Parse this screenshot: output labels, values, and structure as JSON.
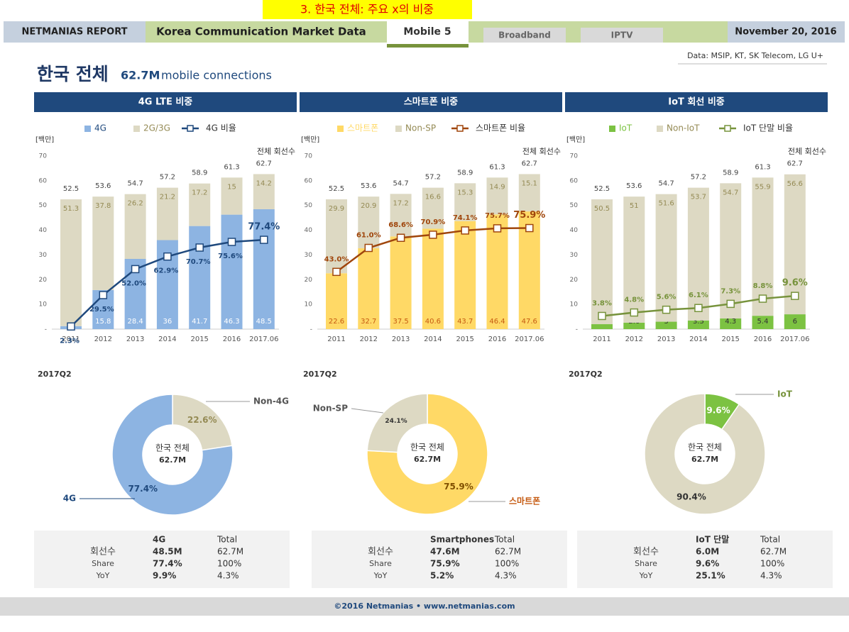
{
  "header": {
    "section": "3. 한국 전체: 주요 x의 비중",
    "brand": "NETMANIAS REPORT",
    "report": "Korea Communication Market Data",
    "tabs": [
      "Mobile 5",
      "Broadband",
      "IPTV"
    ],
    "date": "November 20, 2016",
    "source": "Data: MSIP, KT, SK Telecom, LG U+"
  },
  "page_title": {
    "title": "한국 전체",
    "highlight": "62.7M",
    "subtitle": "mobile connections"
  },
  "chart_data": [
    {
      "type": "bar",
      "title": "4G LTE 비중",
      "y_label": "[백만]",
      "totals_label": "전체 회선수",
      "stacked": true,
      "categories": [
        "2011",
        "2012",
        "2013",
        "2014",
        "2015",
        "2016",
        "2017.06"
      ],
      "series": [
        {
          "name": "4G",
          "color": "#8db4e2",
          "values": [
            1.2,
            15.8,
            28.4,
            36.0,
            41.7,
            46.3,
            48.5
          ]
        },
        {
          "name": "2G/3G",
          "color": "#ddd9c3",
          "values": [
            51.3,
            37.8,
            26.2,
            21.2,
            17.2,
            15.0,
            14.2
          ]
        },
        {
          "name": "4G 비율",
          "type": "line",
          "axis": "y2",
          "color": "#1f497d",
          "values": [
            2.3,
            29.5,
            52.0,
            62.9,
            70.7,
            75.6,
            77.4
          ],
          "value_labels": [
            "2.3%",
            "29.5%",
            "52.0%",
            "62.9%",
            "70.7%",
            "75.6%",
            "77.4%"
          ]
        }
      ],
      "totals": [
        52.5,
        53.6,
        54.7,
        57.2,
        58.9,
        61.3,
        62.7
      ],
      "ylim": [
        0,
        70
      ],
      "yticks": [
        {
          "value": 0,
          "label": "-"
        },
        10,
        20,
        30,
        40,
        50,
        60,
        70
      ],
      "y2lim": [
        0,
        150
      ]
    },
    {
      "type": "bar",
      "title": "스마트폰 비중",
      "y_label": "[백만]",
      "totals_label": "전체 회선수",
      "stacked": true,
      "categories": [
        "2011",
        "2012",
        "2013",
        "2014",
        "2015",
        "2016",
        "2017.06"
      ],
      "series": [
        {
          "name": "스마트폰",
          "color": "#ffd966",
          "values": [
            22.6,
            32.7,
            37.5,
            40.6,
            43.7,
            46.4,
            47.6
          ]
        },
        {
          "name": "Non-SP",
          "color": "#ddd9c3",
          "values": [
            29.9,
            20.9,
            17.2,
            16.6,
            15.3,
            14.9,
            15.1
          ]
        },
        {
          "name": "스마트폰 비율",
          "type": "line",
          "axis": "y2",
          "color": "#a0460c",
          "values": [
            43.0,
            61.0,
            68.6,
            70.9,
            74.1,
            75.7,
            75.9
          ],
          "value_labels": [
            "43.0%",
            "61.0%",
            "68.6%",
            "70.9%",
            "74.1%",
            "75.7%",
            "75.9%"
          ]
        }
      ],
      "totals": [
        52.5,
        53.6,
        54.7,
        57.2,
        58.9,
        61.3,
        62.7
      ],
      "ylim": [
        0,
        70
      ],
      "yticks": [
        {
          "value": 0,
          "label": "-"
        },
        10,
        20,
        30,
        40,
        50,
        60,
        70
      ],
      "y2lim": [
        0,
        130
      ]
    },
    {
      "type": "bar",
      "title": "IoT 회선 비중",
      "y_label": "[백만]",
      "totals_label": "전체 회선수",
      "stacked": true,
      "categories": [
        "2011",
        "2012",
        "2013",
        "2014",
        "2015",
        "2016",
        "2017.06"
      ],
      "series": [
        {
          "name": "IoT",
          "color": "#7cc242",
          "values": [
            2.0,
            2.6,
            3.0,
            3.5,
            4.3,
            5.4,
            6.0
          ]
        },
        {
          "name": "Non-IoT",
          "color": "#ddd9c3",
          "values": [
            50.5,
            51.0,
            51.6,
            53.7,
            54.7,
            55.9,
            56.6
          ]
        },
        {
          "name": "IoT 단말 비율",
          "type": "line",
          "axis": "y2",
          "color": "#77933c",
          "values": [
            3.8,
            4.8,
            5.6,
            6.1,
            7.3,
            8.8,
            9.6
          ],
          "value_labels": [
            "3.8%",
            "4.8%",
            "5.6%",
            "6.1%",
            "7.3%",
            "8.8%",
            "9.6%"
          ]
        }
      ],
      "totals": [
        52.5,
        53.6,
        54.7,
        57.2,
        58.9,
        61.3,
        62.7
      ],
      "ylim": [
        0,
        70
      ],
      "yticks": [
        {
          "value": 0,
          "label": "-"
        },
        10,
        20,
        30,
        40,
        50,
        60,
        70
      ],
      "y2lim": [
        0,
        50
      ]
    },
    {
      "type": "pie",
      "donut": true,
      "subtitle": "2017Q2",
      "center_title": "한국 전체",
      "center_value": "62.7M",
      "categories": [
        "Non-4G",
        "4G"
      ],
      "values": [
        22.6,
        77.4
      ],
      "value_labels": [
        "22.6%",
        "77.4%"
      ],
      "colors": [
        "#ddd9c3",
        "#8db4e2"
      ]
    },
    {
      "type": "pie",
      "donut": true,
      "subtitle": "2017Q2",
      "center_title": "한국 전체",
      "center_value": "62.7M",
      "categories": [
        "스마트폰",
        "Non-SP"
      ],
      "values": [
        75.9,
        24.1
      ],
      "value_labels": [
        "75.9%",
        "24.1%"
      ],
      "colors": [
        "#ffd966",
        "#ddd9c3"
      ]
    },
    {
      "type": "pie",
      "donut": true,
      "subtitle": "2017Q2",
      "center_title": "한국 전체",
      "center_value": "62.7M",
      "categories": [
        "IoT",
        null
      ],
      "values": [
        9.6,
        90.4
      ],
      "value_labels": [
        "9.6%",
        "90.4%"
      ],
      "colors": [
        "#7cc242",
        "#ddd9c3"
      ]
    }
  ],
  "tables": [
    {
      "columns": [
        "4G",
        "Total"
      ],
      "rows": [
        {
          "label": "회선수",
          "values": [
            "48.5M",
            "62.7M"
          ]
        },
        {
          "label": "Share",
          "values": [
            "77.4%",
            "100%"
          ]
        },
        {
          "label": "YoY",
          "values": [
            "9.9%",
            "4.3%"
          ]
        }
      ]
    },
    {
      "columns": [
        "Smartphones",
        "Total"
      ],
      "rows": [
        {
          "label": "회선수",
          "values": [
            "47.6M",
            "62.7M"
          ]
        },
        {
          "label": "Share",
          "values": [
            "75.9%",
            "100%"
          ]
        },
        {
          "label": "YoY",
          "values": [
            "5.2%",
            "4.3%"
          ]
        }
      ]
    },
    {
      "columns": [
        "IoT 단말",
        "Total"
      ],
      "rows": [
        {
          "label": "회선수",
          "values": [
            "6.0M",
            "62.7M"
          ]
        },
        {
          "label": "Share",
          "values": [
            "9.6%",
            "100%"
          ]
        },
        {
          "label": "YoY",
          "values": [
            "25.1%",
            "4.3%"
          ]
        }
      ]
    }
  ],
  "footer": "©2016 Netmanias • www.netmanias.com"
}
